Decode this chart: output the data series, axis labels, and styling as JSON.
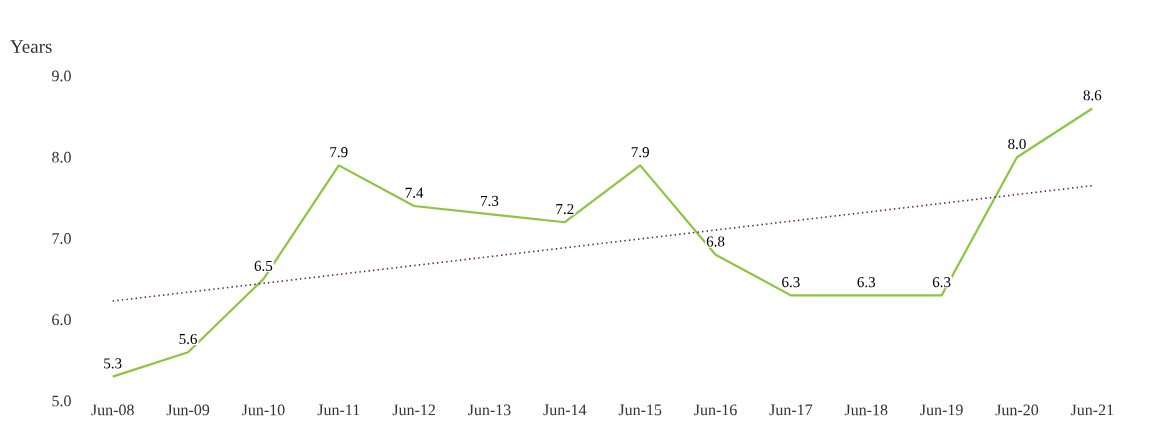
{
  "chart_data": {
    "type": "line",
    "ylabel": "Years",
    "categories": [
      "Jun-08",
      "Jun-09",
      "Jun-10",
      "Jun-11",
      "Jun-12",
      "Jun-13",
      "Jun-14",
      "Jun-15",
      "Jun-16",
      "Jun-17",
      "Jun-18",
      "Jun-19",
      "Jun-20",
      "Jun-21"
    ],
    "series": [
      {
        "color": "#8cc63f",
        "values": [
          5.3,
          5.6,
          6.5,
          7.9,
          7.4,
          7.3,
          7.2,
          7.9,
          6.8,
          6.3,
          6.3,
          6.3,
          8.0,
          8.6
        ],
        "value_labels": [
          "5.3",
          "5.6",
          "6.5",
          "7.9",
          "7.4",
          "7.3",
          "7.2",
          "7.9",
          "6.8",
          "6.3",
          "6.3",
          "6.3",
          "8.0",
          "8.6"
        ]
      },
      {
        "type": "line",
        "color": "#5c1a5c",
        "line_style": "dotted",
        "x": [
          "Jun-08",
          "Jun-21"
        ],
        "values": [
          6.23,
          7.65
        ]
      }
    ],
    "ylim": [
      5,
      9
    ],
    "yticks": [
      {
        "value": 5,
        "label": "5.0"
      },
      {
        "value": 6,
        "label": "6.0"
      },
      {
        "value": 7,
        "label": "7.0"
      },
      {
        "value": 8,
        "label": "8.0"
      },
      {
        "value": 9,
        "label": "9.0"
      }
    ],
    "grid": "y",
    "marker": "none"
  }
}
